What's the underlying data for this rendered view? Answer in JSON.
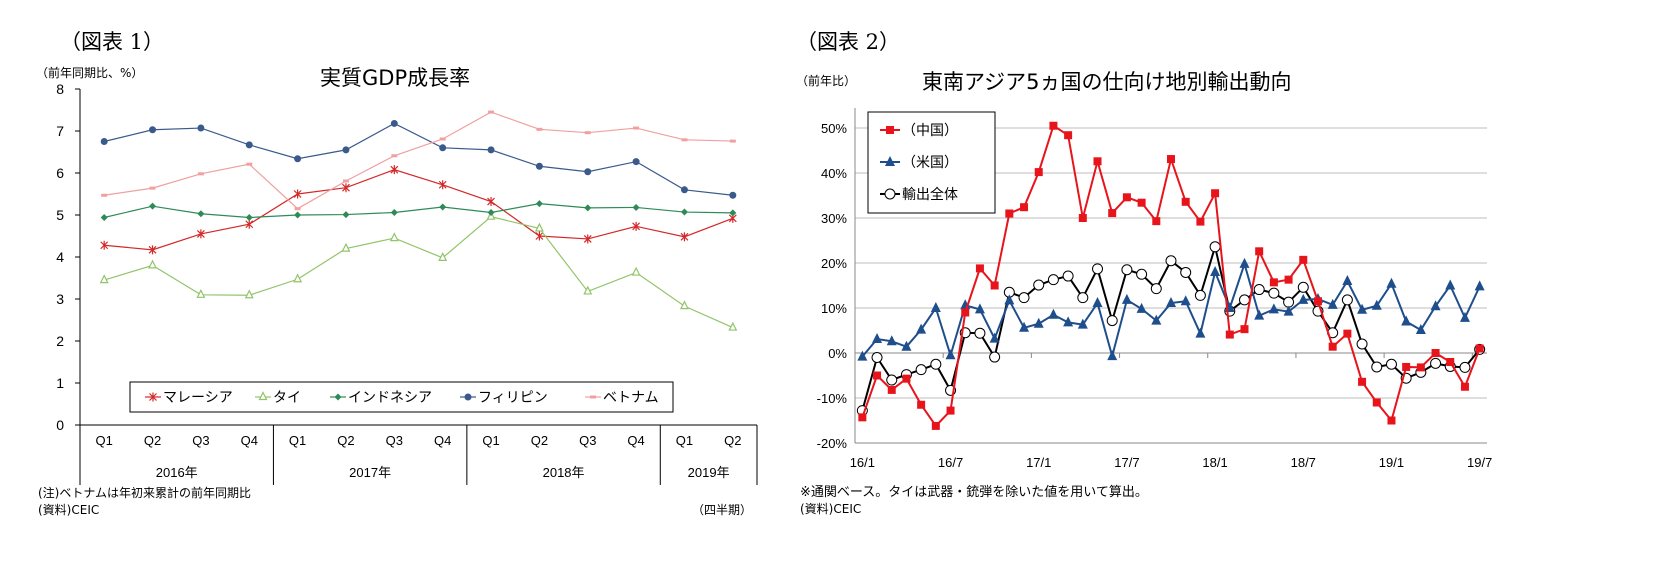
{
  "figure1": {
    "label": "（図表 1）",
    "unit": "（前年同期比、%）",
    "note": "(注)ベトナムは年初来累計の前年同期比",
    "source": "(資料)CEIC",
    "period_label": "（四半期）"
  },
  "figure2": {
    "label": "（図表 2）",
    "unit": "（前年比）",
    "note": "※通関ベース。タイは武器・銃弾を除いた値を用いて算出。",
    "source": "(資料)CEIC"
  },
  "chart_data": [
    {
      "type": "line",
      "title": "実質GDP成長率",
      "ylabel": "（前年同期比、%）",
      "xlabel": "（四半期）",
      "ylim": [
        0,
        8
      ],
      "yticks": [
        0,
        1,
        2,
        3,
        4,
        5,
        6,
        7,
        8
      ],
      "grid": false,
      "legend": "bottom",
      "categories": [
        "Q1",
        "Q2",
        "Q3",
        "Q4",
        "Q1",
        "Q2",
        "Q3",
        "Q4",
        "Q1",
        "Q2",
        "Q3",
        "Q4",
        "Q1",
        "Q2"
      ],
      "year_groups": [
        {
          "label": "2016年",
          "span": 4
        },
        {
          "label": "2017年",
          "span": 4
        },
        {
          "label": "2018年",
          "span": 4
        },
        {
          "label": "2019年",
          "span": 2
        }
      ],
      "series": [
        {
          "name": "マレーシア",
          "color": "#d62728",
          "marker": "star",
          "values": [
            4.28,
            4.17,
            4.55,
            4.78,
            5.5,
            5.65,
            6.08,
            5.72,
            5.32,
            4.5,
            4.43,
            4.73,
            4.48,
            4.92
          ]
        },
        {
          "name": "タイ",
          "color": "#92c46a",
          "marker": "triangle-open",
          "values": [
            3.45,
            3.8,
            3.1,
            3.09,
            3.47,
            4.2,
            4.45,
            3.98,
            4.96,
            4.68,
            3.18,
            3.63,
            2.83,
            2.32
          ]
        },
        {
          "name": "インドネシア",
          "color": "#2e8b57",
          "marker": "diamond",
          "values": [
            4.94,
            5.21,
            5.03,
            4.94,
            5.0,
            5.01,
            5.06,
            5.19,
            5.06,
            5.27,
            5.17,
            5.18,
            5.07,
            5.05
          ]
        },
        {
          "name": "フィリピン",
          "color": "#3a5a8c",
          "marker": "circle",
          "values": [
            6.75,
            7.03,
            7.07,
            6.67,
            6.34,
            6.55,
            7.18,
            6.6,
            6.55,
            6.16,
            6.03,
            6.27,
            5.6,
            5.47
          ]
        },
        {
          "name": "ベトナム",
          "color": "#f0a0a0",
          "marker": "dash",
          "values": [
            5.47,
            5.64,
            5.98,
            6.21,
            5.15,
            5.81,
            6.41,
            6.81,
            7.45,
            7.04,
            6.96,
            7.07,
            6.79,
            6.76
          ]
        }
      ]
    },
    {
      "type": "line",
      "title": "東南アジア5ヵ国の仕向け地別輸出動向",
      "ylabel": "（前年比）",
      "ylim": [
        -20,
        50
      ],
      "yticks": [
        -20,
        -10,
        0,
        10,
        20,
        30,
        40,
        50
      ],
      "ytick_format": "percent",
      "grid": true,
      "legend": "top-left",
      "x_start": "16/1",
      "x_end": "19/7",
      "xtick_labels": [
        "16/1",
        "16/7",
        "17/1",
        "17/7",
        "18/1",
        "18/7",
        "19/1",
        "19/7"
      ],
      "xtick_every_months": 6,
      "series": [
        {
          "name": "（中国）",
          "color": "#e8141b",
          "marker": "square",
          "values": [
            -14.3,
            -5,
            -8.2,
            -5.7,
            -11.5,
            -16.2,
            -12.8,
            9,
            18.8,
            15,
            31,
            32.4,
            40.2,
            50.5,
            48.4,
            30,
            42.6,
            31.1,
            34.6,
            33.4,
            29.3,
            43.1,
            33.6,
            29.2,
            35.5,
            4.1,
            5.3,
            22.6,
            15.7,
            16.3,
            20.7,
            11.5,
            1.4,
            4.3,
            -6.4,
            -11,
            -15,
            -3.1,
            -3.2,
            0,
            -2,
            -7.5,
            1
          ]
        },
        {
          "name": "（米国）",
          "color": "#1f4e8c",
          "marker": "triangle",
          "values": [
            -0.8,
            3.1,
            2.6,
            1.4,
            5.2,
            10,
            -0.5,
            10.6,
            9.7,
            3.2,
            11.7,
            5.6,
            6.5,
            8.5,
            6.8,
            6.3,
            11.1,
            -0.7,
            11.8,
            9.8,
            7.2,
            11.1,
            11.5,
            4.3,
            18,
            10,
            19.8,
            8.3,
            9.7,
            9.2,
            11.8,
            12,
            10.7,
            16,
            9.6,
            10.5,
            15.4,
            7,
            5.1,
            10.4,
            15,
            7.8,
            14.8
          ]
        },
        {
          "name": "輸出全体",
          "color": "#000000",
          "marker": "circle-open",
          "values": [
            -12.8,
            -1,
            -6,
            -4.8,
            -3.7,
            -2.5,
            -8.3,
            4.5,
            4.4,
            -0.9,
            13.5,
            12.3,
            15.1,
            16.3,
            17.1,
            12.3,
            18.7,
            7.2,
            18.5,
            17.5,
            14.3,
            20.5,
            17.9,
            12.8,
            23.6,
            9.3,
            11.8,
            14.1,
            13.3,
            11.3,
            14.6,
            9.3,
            4.5,
            11.8,
            2,
            -3.1,
            -2.5,
            -5.6,
            -4.3,
            -2.3,
            -3,
            -3.2,
            0.8
          ]
        }
      ]
    }
  ]
}
